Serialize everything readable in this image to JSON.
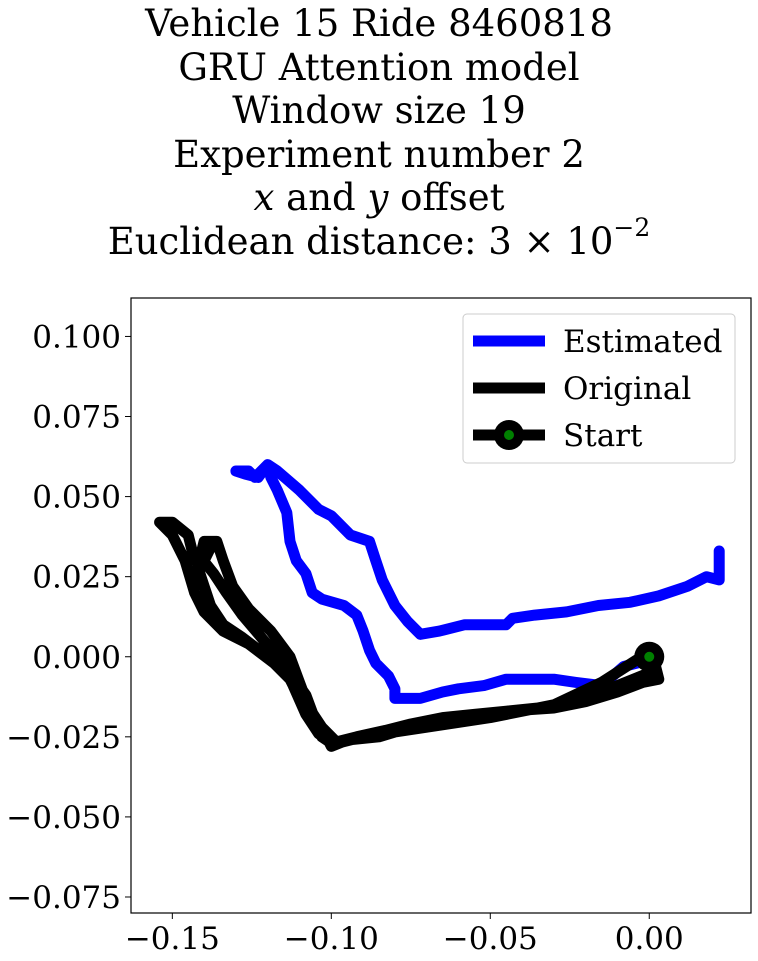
{
  "title": {
    "line1": "Vehicle 15 Ride 8460818",
    "line2": "GRU Attention model",
    "line3": "Window size 19",
    "line4": "Experiment number 2",
    "line5_var_x": "x",
    "line5_and": " and ",
    "line5_var_y": "y",
    "line5_rest": " offset",
    "line6_prefix": "Euclidean distance: 3",
    "line6_times": " × 10",
    "line6_exp": "−2"
  },
  "chart_data": {
    "type": "line",
    "xlim": [
      -0.163,
      0.032
    ],
    "ylim": [
      -0.08,
      0.112
    ],
    "x_ticks": [
      {
        "value": -0.15,
        "label": "−0.15"
      },
      {
        "value": -0.1,
        "label": "−0.10"
      },
      {
        "value": -0.05,
        "label": "−0.05"
      },
      {
        "value": 0.0,
        "label": "0.00"
      }
    ],
    "y_ticks": [
      {
        "value": 0.1,
        "label": "0.100"
      },
      {
        "value": 0.075,
        "label": "0.075"
      },
      {
        "value": 0.05,
        "label": "0.050"
      },
      {
        "value": 0.025,
        "label": "0.025"
      },
      {
        "value": 0.0,
        "label": "0.000"
      },
      {
        "value": -0.025,
        "label": "−0.025"
      },
      {
        "value": -0.05,
        "label": "−0.050"
      },
      {
        "value": -0.075,
        "label": "−0.075"
      }
    ],
    "grid": false,
    "legend_placement": "upper right",
    "legend": [
      "Estimated",
      "Original",
      "Start"
    ],
    "series": [
      {
        "name": "Estimated",
        "color": "#0000ff",
        "points": [
          [
            0.0,
            -0.001
          ],
          [
            -0.008,
            -0.003
          ],
          [
            -0.015,
            -0.009
          ],
          [
            -0.023,
            -0.008
          ],
          [
            -0.03,
            -0.007
          ],
          [
            -0.045,
            -0.007
          ],
          [
            -0.052,
            -0.009
          ],
          [
            -0.06,
            -0.01
          ],
          [
            -0.065,
            -0.011
          ],
          [
            -0.072,
            -0.013
          ],
          [
            -0.08,
            -0.013
          ],
          [
            -0.08,
            -0.01
          ],
          [
            -0.082,
            -0.006
          ],
          [
            -0.086,
            -0.002
          ],
          [
            -0.088,
            0.002
          ],
          [
            -0.09,
            0.008
          ],
          [
            -0.092,
            0.013
          ],
          [
            -0.096,
            0.016
          ],
          [
            -0.103,
            0.018
          ],
          [
            -0.106,
            0.02
          ],
          [
            -0.108,
            0.026
          ],
          [
            -0.111,
            0.03
          ],
          [
            -0.113,
            0.036
          ],
          [
            -0.114,
            0.045
          ],
          [
            -0.117,
            0.052
          ],
          [
            -0.119,
            0.056
          ],
          [
            -0.12,
            0.06
          ],
          [
            -0.122,
            0.058
          ],
          [
            -0.124,
            0.056
          ],
          [
            -0.126,
            0.058
          ],
          [
            -0.13,
            0.058
          ],
          [
            -0.127,
            0.057
          ],
          [
            -0.123,
            0.056
          ],
          [
            -0.12,
            0.06
          ],
          [
            -0.117,
            0.058
          ],
          [
            -0.11,
            0.052
          ],
          [
            -0.104,
            0.046
          ],
          [
            -0.1,
            0.044
          ],
          [
            -0.094,
            0.038
          ],
          [
            -0.088,
            0.036
          ],
          [
            -0.086,
            0.03
          ],
          [
            -0.084,
            0.024
          ],
          [
            -0.08,
            0.016
          ],
          [
            -0.076,
            0.011
          ],
          [
            -0.072,
            0.007
          ],
          [
            -0.066,
            0.008
          ],
          [
            -0.058,
            0.01
          ],
          [
            -0.05,
            0.01
          ],
          [
            -0.045,
            0.01
          ],
          [
            -0.043,
            0.012
          ],
          [
            -0.036,
            0.013
          ],
          [
            -0.026,
            0.014
          ],
          [
            -0.016,
            0.016
          ],
          [
            -0.006,
            0.017
          ],
          [
            0.003,
            0.019
          ],
          [
            0.012,
            0.022
          ],
          [
            0.018,
            0.025
          ],
          [
            0.022,
            0.024
          ],
          [
            0.022,
            0.028
          ],
          [
            0.022,
            0.033
          ]
        ]
      },
      {
        "name": "Original",
        "color": "#000000",
        "points": [
          [
            0.0,
            -0.005
          ],
          [
            -0.005,
            -0.007
          ],
          [
            -0.015,
            -0.011
          ],
          [
            -0.025,
            -0.014
          ],
          [
            -0.035,
            -0.016
          ],
          [
            -0.045,
            -0.017
          ],
          [
            -0.055,
            -0.018
          ],
          [
            -0.065,
            -0.019
          ],
          [
            -0.075,
            -0.021
          ],
          [
            -0.083,
            -0.023
          ],
          [
            -0.092,
            -0.025
          ],
          [
            -0.1,
            -0.027
          ],
          [
            -0.103,
            -0.025
          ],
          [
            -0.105,
            -0.02
          ],
          [
            -0.108,
            -0.012
          ],
          [
            -0.113,
            -0.005
          ],
          [
            -0.12,
            0.0
          ],
          [
            -0.128,
            0.006
          ],
          [
            -0.134,
            0.01
          ],
          [
            -0.138,
            0.016
          ],
          [
            -0.14,
            0.022
          ],
          [
            -0.142,
            0.028
          ],
          [
            -0.14,
            0.036
          ],
          [
            -0.136,
            0.036
          ],
          [
            -0.134,
            0.03
          ],
          [
            -0.131,
            0.022
          ],
          [
            -0.126,
            0.015
          ],
          [
            -0.119,
            0.008
          ],
          [
            -0.113,
            0.0
          ],
          [
            -0.11,
            -0.008
          ],
          [
            -0.107,
            -0.016
          ],
          [
            -0.103,
            -0.022
          ],
          [
            -0.1,
            -0.028
          ],
          [
            -0.095,
            -0.026
          ],
          [
            -0.085,
            -0.025
          ],
          [
            -0.075,
            -0.022
          ],
          [
            -0.065,
            -0.02
          ],
          [
            -0.055,
            -0.018
          ],
          [
            -0.045,
            -0.017
          ],
          [
            -0.03,
            -0.016
          ],
          [
            -0.02,
            -0.014
          ],
          [
            -0.01,
            -0.011
          ],
          [
            -0.002,
            -0.008
          ],
          [
            0.003,
            -0.007
          ],
          [
            0.002,
            -0.003
          ],
          [
            -0.004,
            -0.001
          ],
          [
            -0.015,
            -0.008
          ],
          [
            -0.03,
            -0.015
          ],
          [
            -0.05,
            -0.019
          ],
          [
            -0.07,
            -0.022
          ],
          [
            -0.09,
            -0.025
          ],
          [
            -0.098,
            -0.027
          ],
          [
            -0.105,
            -0.02
          ],
          [
            -0.11,
            -0.01
          ],
          [
            -0.118,
            -0.002
          ],
          [
            -0.126,
            0.004
          ],
          [
            -0.134,
            0.008
          ],
          [
            -0.14,
            0.014
          ],
          [
            -0.143,
            0.02
          ],
          [
            -0.146,
            0.03
          ],
          [
            -0.15,
            0.038
          ],
          [
            -0.154,
            0.042
          ],
          [
            -0.15,
            0.042
          ],
          [
            -0.145,
            0.038
          ],
          [
            -0.143,
            0.03
          ],
          [
            -0.14,
            0.03
          ],
          [
            -0.138,
            0.034
          ],
          [
            -0.141,
            0.031
          ],
          [
            -0.137,
            0.026
          ],
          [
            -0.133,
            0.02
          ],
          [
            -0.128,
            0.013
          ],
          [
            -0.122,
            0.006
          ],
          [
            -0.116,
            -0.001
          ],
          [
            -0.112,
            -0.009
          ],
          [
            -0.108,
            -0.018
          ],
          [
            -0.104,
            -0.024
          ],
          [
            -0.1,
            -0.027
          ]
        ]
      }
    ],
    "start_point": {
      "name": "Start",
      "x": 0.0,
      "y": 0.0,
      "marker_color": "#000000",
      "inner_color": "#008000"
    }
  }
}
